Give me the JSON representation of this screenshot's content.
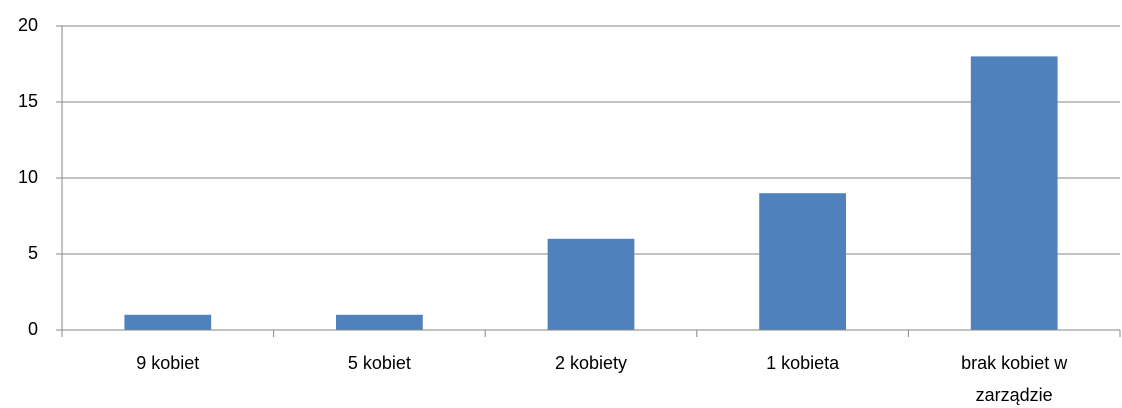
{
  "chart_data": {
    "type": "bar",
    "categories": [
      "9 kobiet",
      "5 kobiet",
      "2 kobiety",
      "1 kobieta",
      "brak kobiet w zarządzie"
    ],
    "values": [
      1,
      1,
      6,
      9,
      18
    ],
    "color": "#4f81bd",
    "ylim": [
      0,
      20
    ],
    "yticks": [
      0,
      5,
      10,
      15,
      20
    ],
    "grid": true
  }
}
